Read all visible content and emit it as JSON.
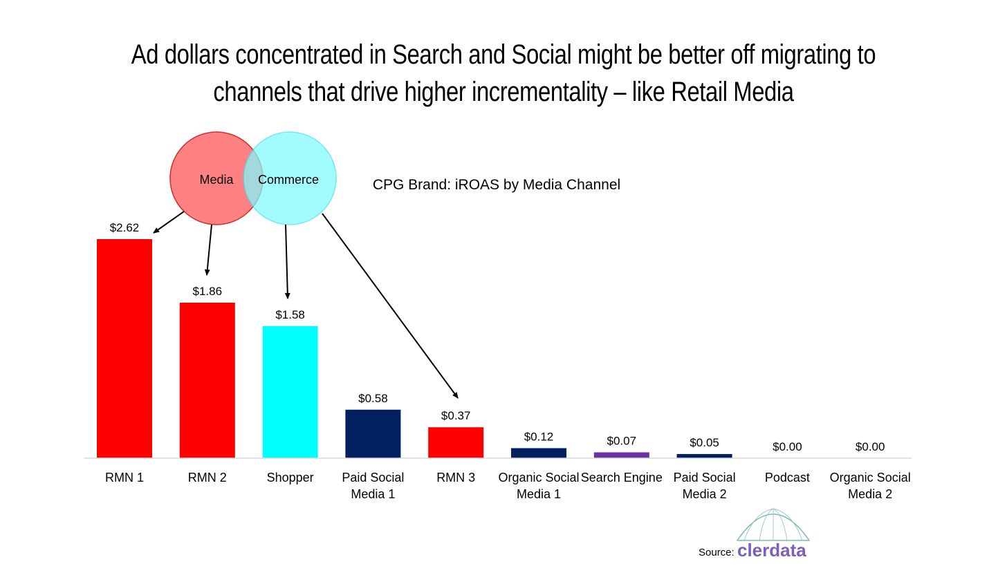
{
  "title_line1": "Ad dollars concentrated in Search and Social might be better off migrating to",
  "title_line2": "channels that drive higher incrementality – like Retail Media",
  "venn": {
    "left_label": "Media",
    "right_label": "Commerce",
    "left_color": "#ff7b7b",
    "right_color": "#7ffbff"
  },
  "chart_data": {
    "type": "bar",
    "title": "CPG Brand: iROAS by Media Channel",
    "categories": [
      [
        "RMN 1"
      ],
      [
        "RMN 2"
      ],
      [
        "Shopper"
      ],
      [
        "Paid Social",
        "Media 1"
      ],
      [
        "RMN 3"
      ],
      [
        "Organic Social",
        "Media 1"
      ],
      [
        "Search Engine"
      ],
      [
        "Paid Social",
        "Media 2"
      ],
      [
        "Podcast"
      ],
      [
        "Organic Social",
        "Media 2"
      ]
    ],
    "values": [
      2.62,
      1.86,
      1.58,
      0.58,
      0.37,
      0.12,
      0.07,
      0.05,
      0.0,
      0.0
    ],
    "value_labels": [
      "$2.62",
      "$1.86",
      "$1.58",
      "$0.58",
      "$0.37",
      "$0.12",
      "$0.07",
      "$0.05",
      "$0.00",
      "$0.00"
    ],
    "colors": [
      "#ff0000",
      "#ff0000",
      "#00ffff",
      "#002060",
      "#ff0000",
      "#002060",
      "#7030a0",
      "#002060",
      "#002060",
      "#002060"
    ],
    "ylim": [
      0,
      2.62
    ],
    "grid": false,
    "legend": "none"
  },
  "source": {
    "label": "Source:",
    "logo_text": "clerdata"
  }
}
